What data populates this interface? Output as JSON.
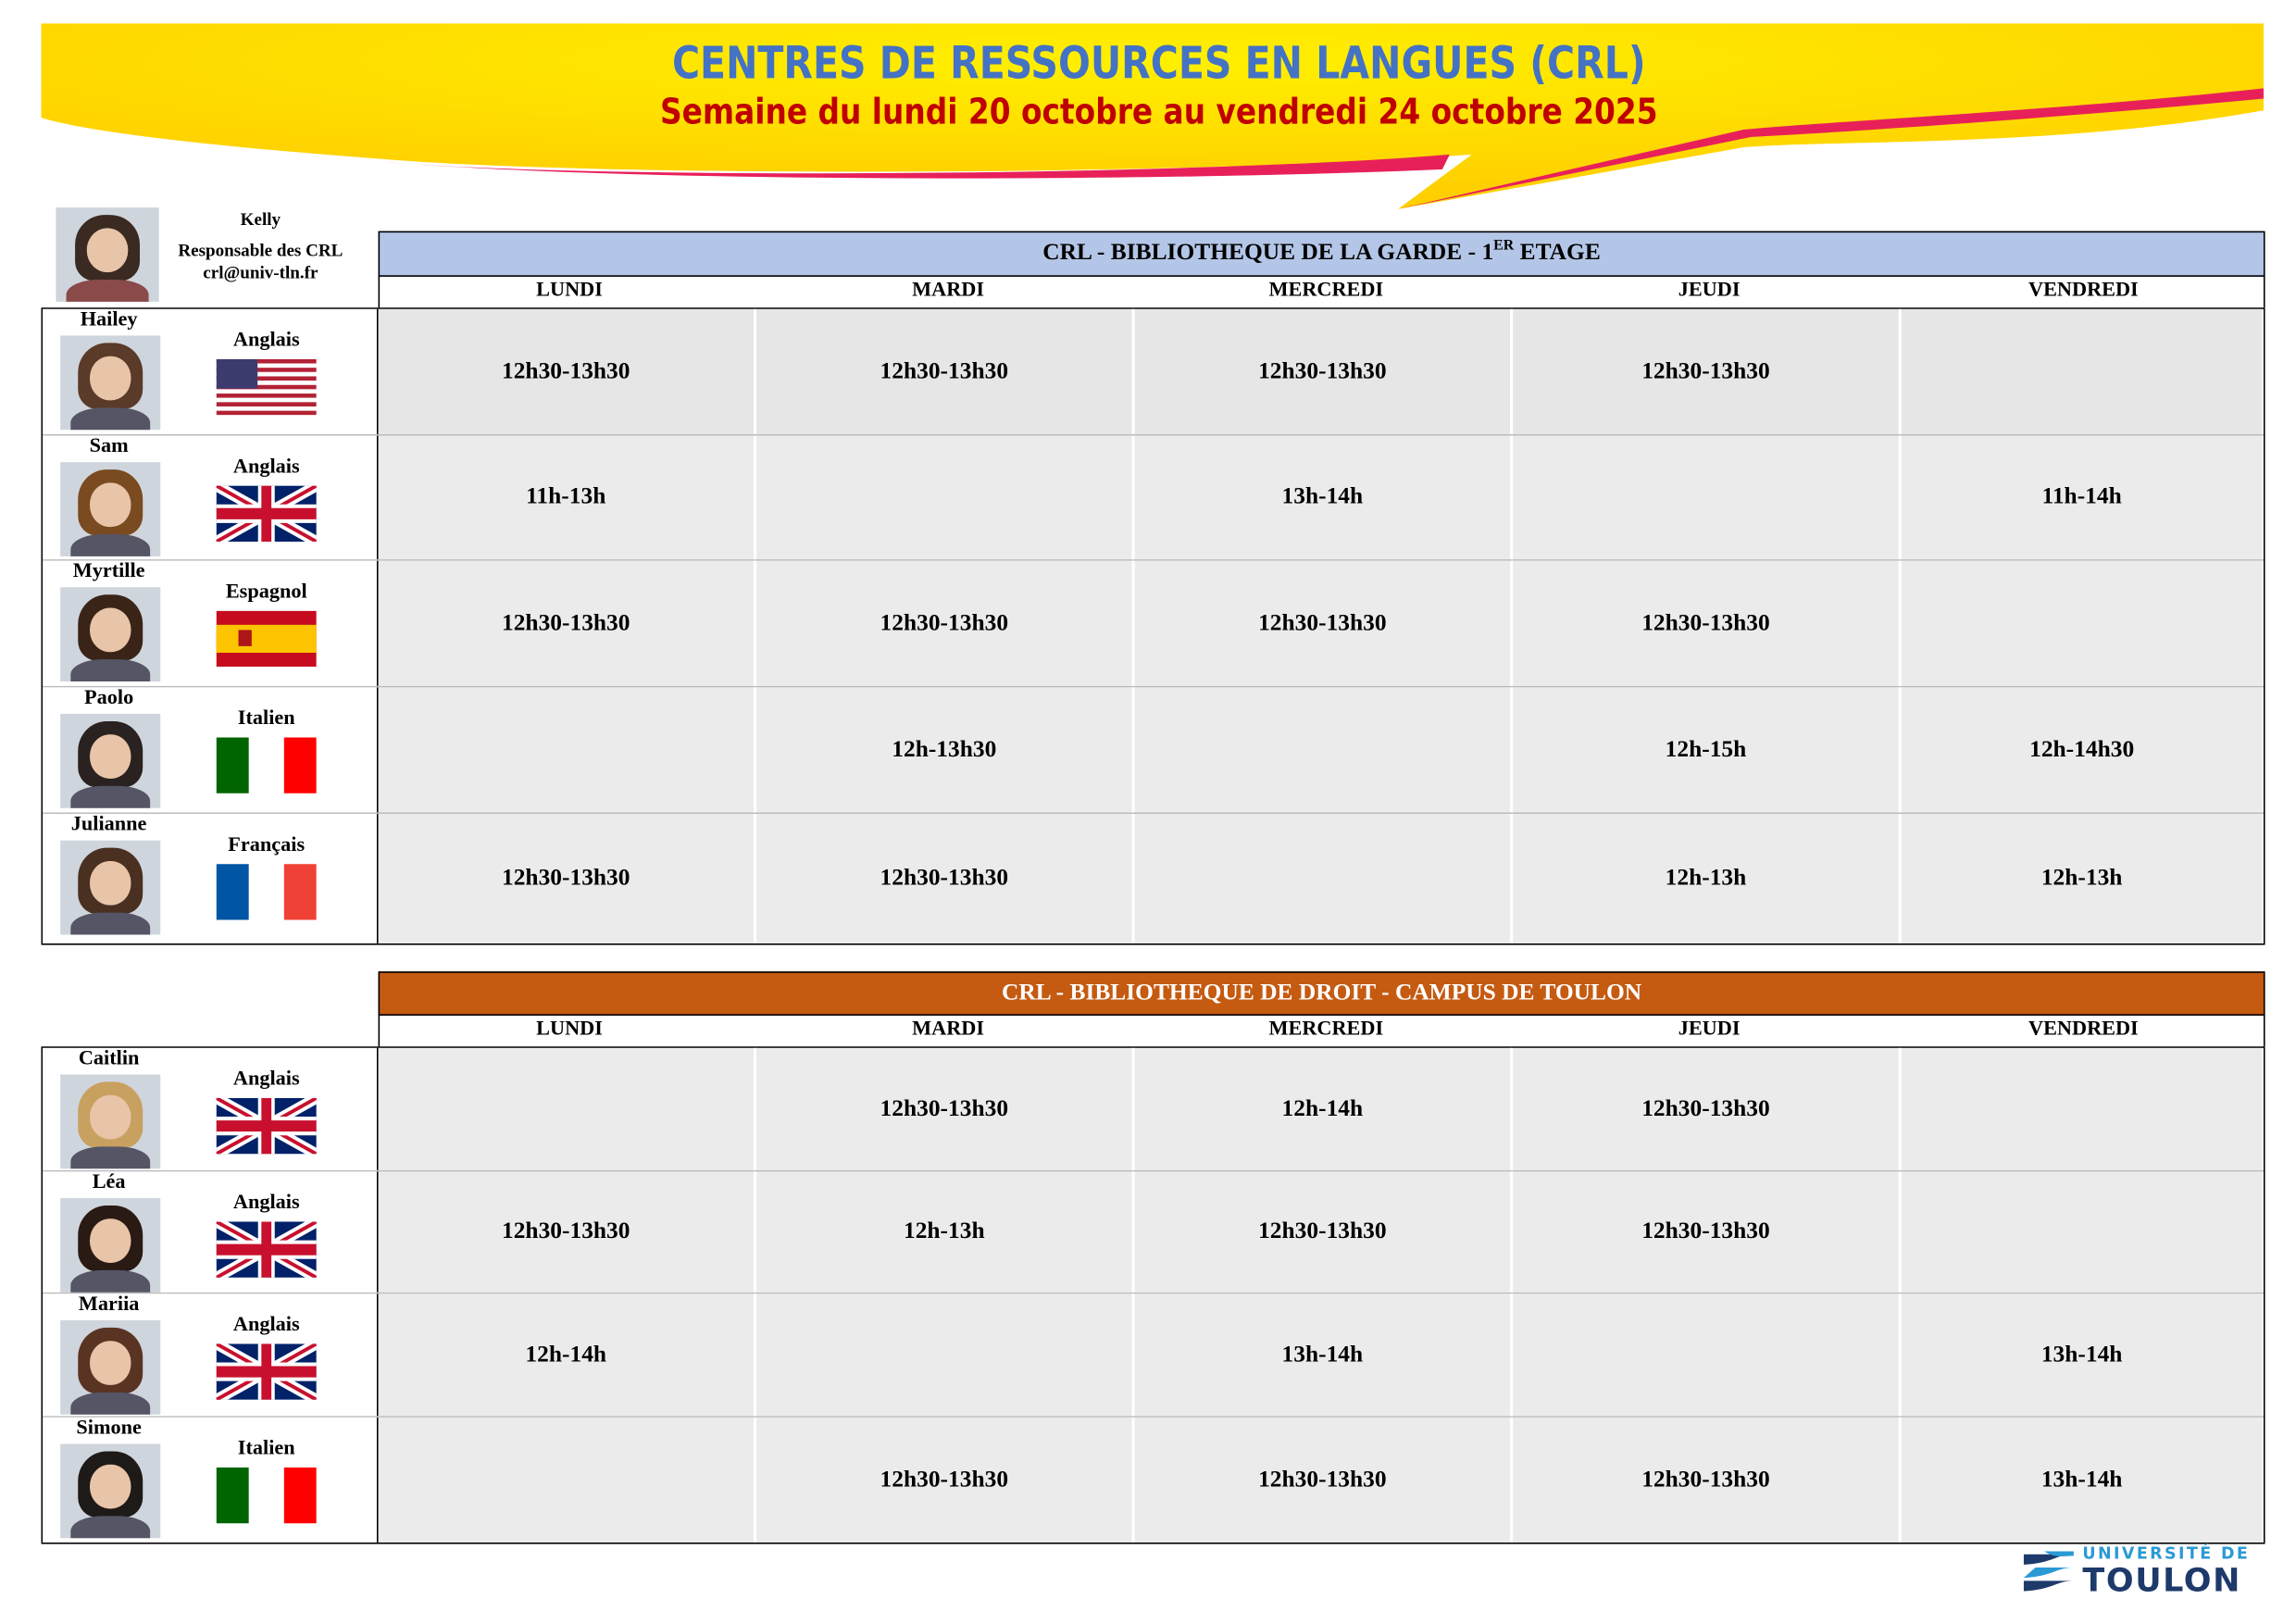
{
  "header": {
    "title": "CENTRES DE RESSOURCES EN LANGUES (CRL)",
    "subtitle": "Semaine du lundi 20 octobre au vendredi 24 octobre 2025"
  },
  "manager": {
    "name": "Kelly",
    "role": "Responsable des CRL",
    "email": "crl@univ-tln.fr"
  },
  "days": [
    "LUNDI",
    "MARDI",
    "MERCREDI",
    "JEUDI",
    "VENDREDI"
  ],
  "sections": [
    {
      "title": "CRL - BIBLIOTHEQUE DE LA GARDE - 1",
      "title_sup": "ER",
      "title_end": " ETAGE",
      "color": "#b4c6e7",
      "text_color": "#000000",
      "tutors": [
        {
          "name": "Hailey",
          "language": "Anglais",
          "flag": "us",
          "slots": [
            "12h30-13h30",
            "12h30-13h30",
            "12h30-13h30",
            "12h30-13h30",
            ""
          ]
        },
        {
          "name": "Sam",
          "language": "Anglais",
          "flag": "uk",
          "slots": [
            "11h-13h",
            "",
            "13h-14h",
            "",
            "11h-14h"
          ]
        },
        {
          "name": "Myrtille",
          "language": "Espagnol",
          "flag": "es",
          "slots": [
            "12h30-13h30",
            "12h30-13h30",
            "12h30-13h30",
            "12h30-13h30",
            ""
          ]
        },
        {
          "name": "Paolo",
          "language": "Italien",
          "flag": "it",
          "slots": [
            "",
            "12h-13h30",
            "",
            "12h-15h",
            "12h-14h30"
          ]
        },
        {
          "name": "Julianne",
          "language": "Français",
          "flag": "fr",
          "slots": [
            "12h30-13h30",
            "12h30-13h30",
            "",
            "12h-13h",
            "12h-13h"
          ]
        }
      ]
    },
    {
      "title": "CRL - BIBLIOTHEQUE DE DROIT - CAMPUS DE TOULON",
      "title_sup": "",
      "title_end": "",
      "color": "#c55a11",
      "text_color": "#ffffff",
      "tutors": [
        {
          "name": "Caitlin",
          "language": "Anglais",
          "flag": "uk",
          "slots": [
            "",
            "12h30-13h30",
            "12h-14h",
            "12h30-13h30",
            ""
          ]
        },
        {
          "name": "Léa",
          "language": "Anglais",
          "flag": "uk",
          "slots": [
            "12h30-13h30",
            "12h-13h",
            "12h30-13h30",
            "12h30-13h30",
            ""
          ]
        },
        {
          "name": "Mariia",
          "language": "Anglais",
          "flag": "uk",
          "slots": [
            "12h-14h",
            "",
            "13h-14h",
            "",
            "13h-14h"
          ]
        },
        {
          "name": "Simone",
          "language": "Italien",
          "flag": "it",
          "slots": [
            "",
            "12h30-13h30",
            "12h30-13h30",
            "12h30-13h30",
            "13h-14h"
          ]
        }
      ]
    }
  ],
  "logo": {
    "line1": "UNIVERSITÉ DE",
    "line2": "TOULON"
  },
  "colors": {
    "title_blue": "#4472c4",
    "subtitle_red": "#c00000",
    "banner_yellow": "#ffd700",
    "swoosh_pink": "#e8205a",
    "cell_gray": "#ebebeb"
  }
}
